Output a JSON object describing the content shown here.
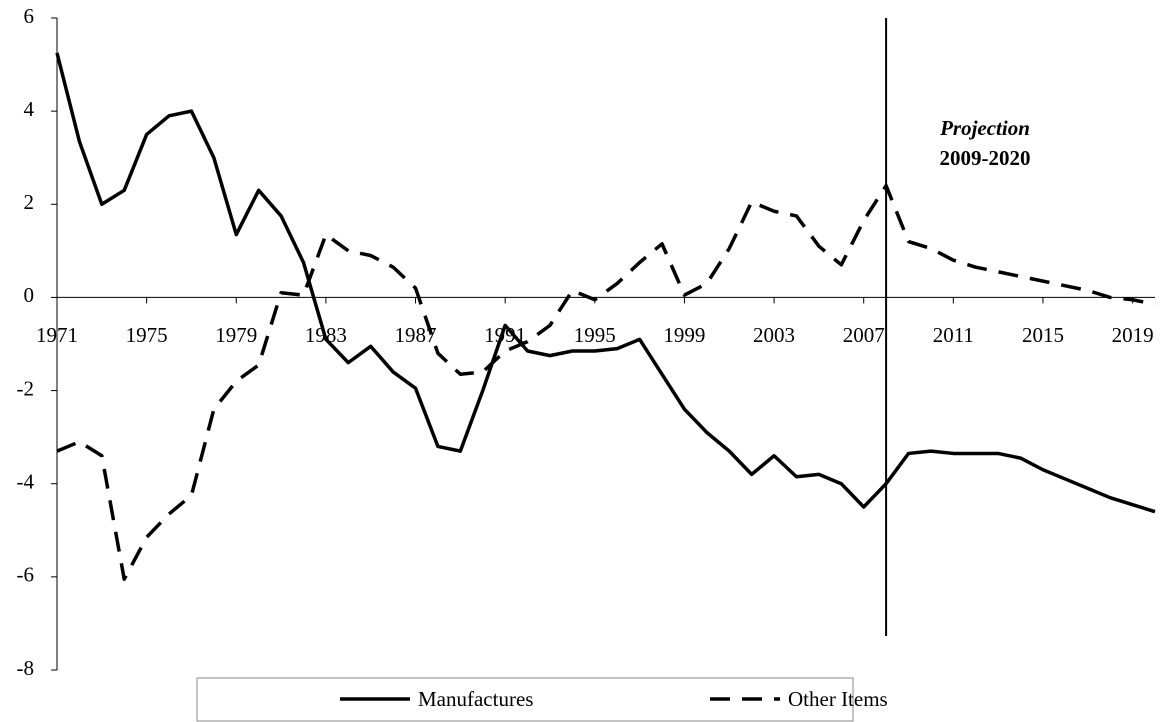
{
  "chart_data": {
    "type": "line",
    "annotation_title": "Projection",
    "annotation_subtitle": "2009-2020",
    "x": [
      1971,
      1972,
      1973,
      1974,
      1975,
      1976,
      1977,
      1978,
      1979,
      1980,
      1981,
      1982,
      1983,
      1984,
      1985,
      1986,
      1987,
      1988,
      1989,
      1990,
      1991,
      1992,
      1993,
      1994,
      1995,
      1996,
      1997,
      1998,
      1999,
      2000,
      2001,
      2002,
      2003,
      2004,
      2005,
      2006,
      2007,
      2008,
      2009,
      2010,
      2011,
      2012,
      2013,
      2014,
      2015,
      2016,
      2017,
      2018,
      2019,
      2020
    ],
    "series": [
      {
        "name": "Manufactures",
        "color": "#000000",
        "dash": false,
        "values": [
          5.25,
          3.35,
          2.0,
          2.3,
          3.5,
          3.9,
          4.0,
          3.0,
          1.35,
          2.3,
          1.75,
          0.75,
          -0.9,
          -1.4,
          -1.05,
          -1.6,
          -1.95,
          -3.2,
          -3.3,
          -2.0,
          -0.6,
          -1.15,
          -1.25,
          -1.15,
          -1.15,
          -1.1,
          -0.9,
          -1.65,
          -2.4,
          -2.9,
          -3.3,
          -3.8,
          -3.4,
          -3.85,
          -3.8,
          -4.0,
          -4.5,
          -4.0,
          -3.35,
          -3.3,
          -3.35,
          -3.35,
          -3.35,
          -3.45,
          -3.7,
          -3.9,
          -4.1,
          -4.3,
          -4.45,
          -4.6
        ]
      },
      {
        "name": "Other Items",
        "color": "#000000",
        "dash": true,
        "values": [
          -3.3,
          -3.1,
          -3.4,
          -6.05,
          -5.15,
          -4.65,
          -4.25,
          -2.4,
          -1.8,
          -1.45,
          0.1,
          0.05,
          1.35,
          1.0,
          0.9,
          0.65,
          0.2,
          -1.2,
          -1.65,
          -1.6,
          -1.15,
          -0.95,
          -0.6,
          0.15,
          -0.05,
          0.3,
          0.75,
          1.15,
          0.05,
          0.3,
          1.05,
          2.05,
          1.85,
          1.75,
          1.1,
          0.7,
          1.65,
          2.4,
          1.2,
          1.05,
          0.8,
          0.65,
          0.55,
          0.45,
          0.35,
          0.25,
          0.15,
          0.0,
          -0.05,
          -0.15
        ]
      }
    ],
    "projection_start_x": 2008,
    "xlim": [
      1971,
      2020
    ],
    "xticks": [
      1971,
      1975,
      1979,
      1983,
      1987,
      1991,
      1995,
      1999,
      2003,
      2007,
      2011,
      2015,
      2019
    ],
    "ylim": [
      -8,
      6
    ],
    "yticks": [
      -8,
      -6,
      -4,
      -2,
      0,
      2,
      4,
      6
    ],
    "grid": false,
    "legend": "bottom"
  }
}
